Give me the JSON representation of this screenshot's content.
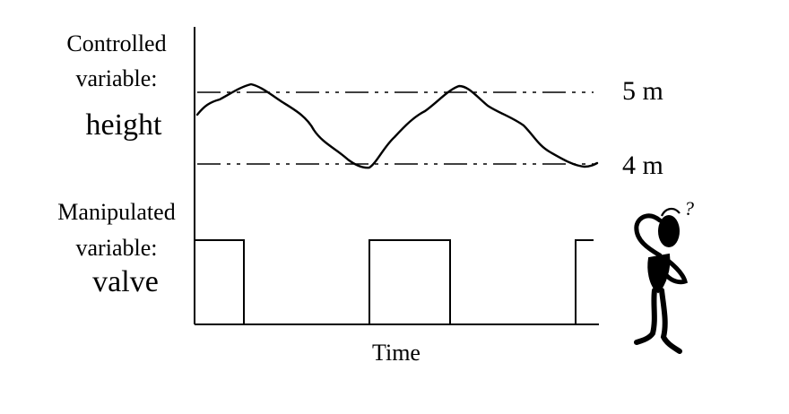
{
  "labels": {
    "controlled_line1": "Controlled",
    "controlled_line2": "variable:",
    "controlled_name": "height",
    "manipulated_line1": "Manipulated",
    "manipulated_line2": "variable:",
    "manipulated_name": "valve",
    "upper_limit": "5 m",
    "lower_limit": "4 m",
    "time_axis": "Time",
    "question_mark": "?"
  },
  "colors": {
    "ink": "#000000",
    "background": "#ffffff"
  }
}
